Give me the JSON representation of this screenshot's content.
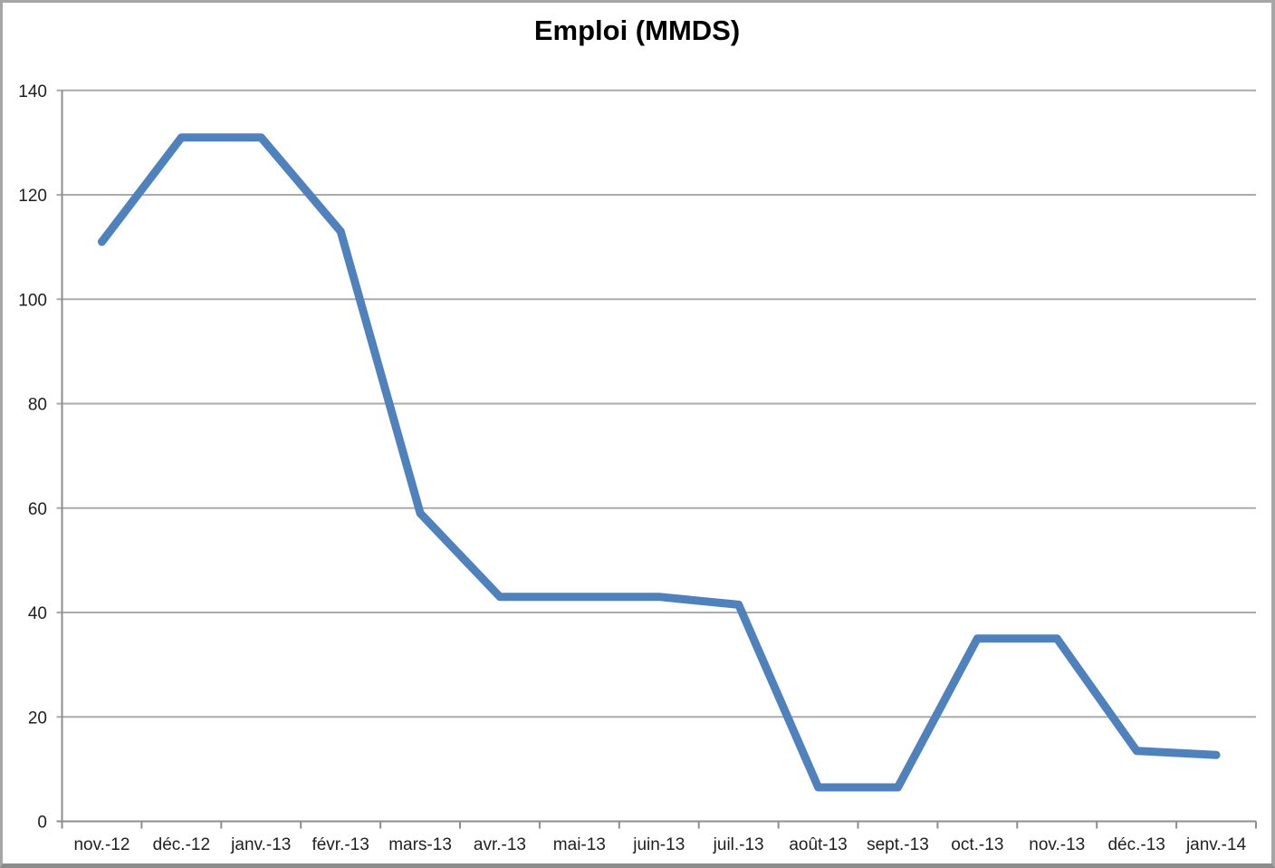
{
  "chart_data": {
    "type": "line",
    "title": "Emploi (MMDS)",
    "categories": [
      "nov.-12",
      "déc.-12",
      "janv.-13",
      "févr.-13",
      "mars-13",
      "avr.-13",
      "mai-13",
      "juin-13",
      "juil.-13",
      "août-13",
      "sept.-13",
      "oct.-13",
      "nov.-13",
      "déc.-13",
      "janv.-14"
    ],
    "series": [
      {
        "name": "Emploi (MMDS)",
        "values": [
          111,
          131,
          131,
          113,
          59,
          43,
          43,
          43,
          41.5,
          6.5,
          6.5,
          35,
          35,
          13.5,
          12.7
        ]
      }
    ],
    "ylim": [
      0,
      140
    ],
    "yticks": [
      0,
      20,
      40,
      60,
      80,
      100,
      120,
      140
    ],
    "xlabel": "",
    "ylabel": "",
    "grid": true,
    "legend_position": "none",
    "colors": {
      "line": "#4F81BD",
      "gridline": "#ABABAB",
      "axis": "#8E8E8E",
      "tick_label": "#1F1F1F",
      "title": "#000000",
      "frame_border": "#A6A6A6",
      "background": "#FFFFFF"
    }
  }
}
